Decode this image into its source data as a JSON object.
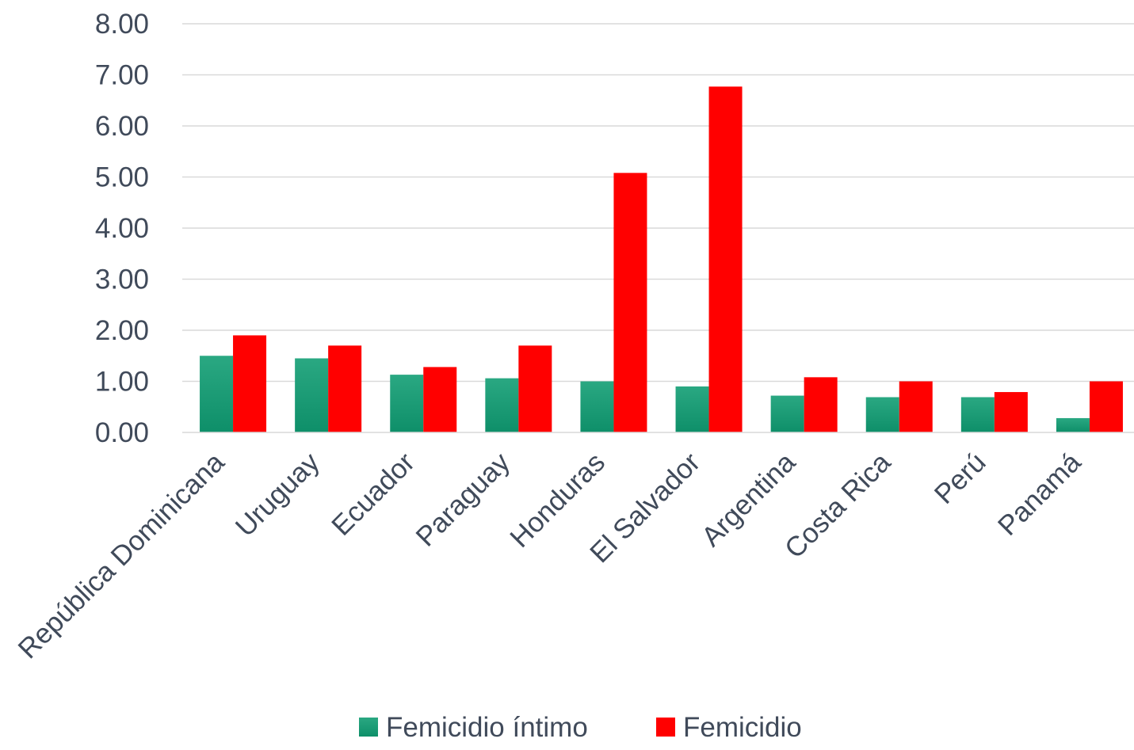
{
  "chart_data": {
    "type": "bar",
    "title": "",
    "xlabel": "",
    "ylabel": "",
    "ylim": [
      0,
      8
    ],
    "y_ticks": [
      "0.00",
      "1.00",
      "2.00",
      "3.00",
      "4.00",
      "5.00",
      "6.00",
      "7.00",
      "8.00"
    ],
    "grid": true,
    "legend_position": "bottom",
    "categories": [
      "República Dominicana",
      "Uruguay",
      "Ecuador",
      "Paraguay",
      "Honduras",
      "El Salvador",
      "Argentina",
      "Costa Rica",
      "Perú",
      "Panamá"
    ],
    "series": [
      {
        "name": "Femicidio íntimo",
        "color": "#1a9e77",
        "gradient_top": "#2aa882",
        "gradient_bottom": "#0e8f69",
        "values": [
          1.5,
          1.45,
          1.13,
          1.06,
          1.0,
          0.9,
          0.72,
          0.69,
          0.69,
          0.28
        ]
      },
      {
        "name": "Femicidio",
        "color": "#ff0000",
        "values": [
          1.9,
          1.7,
          1.28,
          1.7,
          5.08,
          6.77,
          1.08,
          1.0,
          0.79,
          1.0
        ]
      }
    ]
  }
}
